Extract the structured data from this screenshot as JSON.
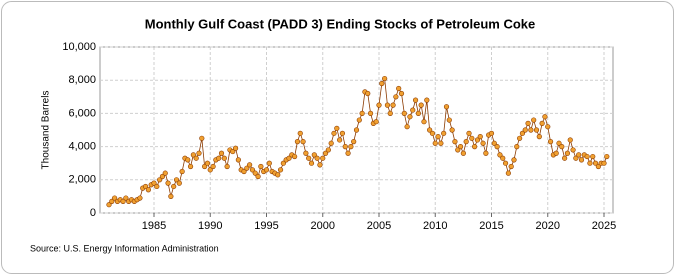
{
  "chart_data": {
    "type": "line",
    "title": "Monthly Gulf Coast (PADD 3) Ending Stocks of Petroleum Coke",
    "y_label": "Thousand Barrels",
    "source": "Source: U.S. Energy Information Administration",
    "x": [
      1981,
      1981.25,
      1981.5,
      1981.75,
      1982,
      1982.25,
      1982.5,
      1982.75,
      1983,
      1983.25,
      1983.5,
      1983.75,
      1984,
      1984.25,
      1984.5,
      1984.75,
      1985,
      1985.25,
      1985.5,
      1985.75,
      1986,
      1986.25,
      1986.5,
      1986.75,
      1987,
      1987.25,
      1987.5,
      1987.75,
      1988,
      1988.25,
      1988.5,
      1988.75,
      1989,
      1989.25,
      1989.5,
      1989.75,
      1990,
      1990.25,
      1990.5,
      1990.75,
      1991,
      1991.25,
      1991.5,
      1991.75,
      1992,
      1992.25,
      1992.5,
      1992.75,
      1993,
      1993.25,
      1993.5,
      1993.75,
      1994,
      1994.25,
      1994.5,
      1994.75,
      1995,
      1995.25,
      1995.5,
      1995.75,
      1996,
      1996.25,
      1996.5,
      1996.75,
      1997,
      1997.25,
      1997.5,
      1997.75,
      1998,
      1998.25,
      1998.5,
      1998.75,
      1999,
      1999.25,
      1999.5,
      1999.75,
      2000,
      2000.25,
      2000.5,
      2000.75,
      2001,
      2001.25,
      2001.5,
      2001.75,
      2002,
      2002.25,
      2002.5,
      2002.75,
      2003,
      2003.25,
      2003.5,
      2003.75,
      2004,
      2004.25,
      2004.5,
      2004.75,
      2005,
      2005.25,
      2005.5,
      2005.75,
      2006,
      2006.25,
      2006.5,
      2006.75,
      2007,
      2007.25,
      2007.5,
      2007.75,
      2008,
      2008.25,
      2008.5,
      2008.75,
      2009,
      2009.25,
      2009.5,
      2009.75,
      2010,
      2010.25,
      2010.5,
      2010.75,
      2011,
      2011.25,
      2011.5,
      2011.75,
      2012,
      2012.25,
      2012.5,
      2012.75,
      2013,
      2013.25,
      2013.5,
      2013.75,
      2014,
      2014.25,
      2014.5,
      2014.75,
      2015,
      2015.25,
      2015.5,
      2015.75,
      2016,
      2016.25,
      2016.5,
      2016.75,
      2017,
      2017.25,
      2017.5,
      2017.75,
      2018,
      2018.25,
      2018.5,
      2018.75,
      2019,
      2019.25,
      2019.5,
      2019.75,
      2020,
      2020.25,
      2020.5,
      2020.75,
      2021,
      2021.25,
      2021.5,
      2021.75,
      2022,
      2022.25,
      2022.5,
      2022.75,
      2023,
      2023.25,
      2023.5,
      2023.75,
      2024,
      2024.25,
      2024.5,
      2024.75,
      2025,
      2025.25
    ],
    "series": [
      {
        "color": "#f0a030",
        "line_color": "#8b3a00",
        "values": [
          500,
          700,
          900,
          700,
          800,
          700,
          900,
          700,
          800,
          700,
          800,
          900,
          1500,
          1600,
          1400,
          1700,
          1800,
          1600,
          2000,
          2200,
          2400,
          1800,
          1000,
          1600,
          2000,
          1800,
          2500,
          3300,
          3200,
          2800,
          3500,
          3300,
          3600,
          4500,
          2800,
          3000,
          2600,
          2800,
          3200,
          3300,
          3600,
          3300,
          2800,
          3800,
          3700,
          3900,
          3200,
          2600,
          2500,
          2700,
          2900,
          2600,
          2400,
          2200,
          2800,
          2500,
          2600,
          3000,
          2500,
          2400,
          2300,
          2600,
          3000,
          3200,
          3300,
          3500,
          3400,
          4300,
          4800,
          4300,
          3600,
          3300,
          3000,
          3500,
          3300,
          2900,
          3300,
          3600,
          3800,
          4200,
          4800,
          5100,
          4400,
          4800,
          4000,
          3600,
          4000,
          4300,
          5000,
          5600,
          6000,
          7300,
          7200,
          6000,
          5400,
          5500,
          6500,
          7800,
          8100,
          6500,
          6000,
          6500,
          7000,
          7500,
          7200,
          6000,
          5200,
          5800,
          6200,
          6800,
          6000,
          6500,
          5500,
          6800,
          5000,
          4800,
          4200,
          4600,
          4200,
          4800,
          6400,
          5600,
          5000,
          4300,
          3800,
          4000,
          3600,
          4300,
          4800,
          4500,
          4000,
          4400,
          4600,
          4200,
          3600,
          4700,
          4800,
          4200,
          4000,
          3500,
          3300,
          3000,
          2400,
          2800,
          3200,
          4000,
          4500,
          4800,
          5000,
          5400,
          5000,
          5600,
          5000,
          4600,
          5400,
          5800,
          5200,
          4300,
          3500,
          3600,
          4200,
          4000,
          3300,
          3600,
          4400,
          3800,
          3300,
          3500,
          3200,
          3500,
          3400,
          3000,
          3400,
          3000,
          2800,
          3000,
          3000,
          3400
        ]
      }
    ],
    "xlim": [
      1980.2,
      2025.8
    ],
    "xticks": [
      1985,
      1990,
      1995,
      2000,
      2005,
      2010,
      2015,
      2020,
      2025
    ],
    "ylim": [
      0,
      10000
    ],
    "yticks": [
      {
        "value": 0,
        "label": "0"
      },
      {
        "value": 2000,
        "label": "2,000"
      },
      {
        "value": 4000,
        "label": "4,000"
      },
      {
        "value": 6000,
        "label": "6,000"
      },
      {
        "value": 8000,
        "label": "8,000"
      },
      {
        "value": 10000,
        "label": "10,000"
      }
    ],
    "grid": true
  }
}
